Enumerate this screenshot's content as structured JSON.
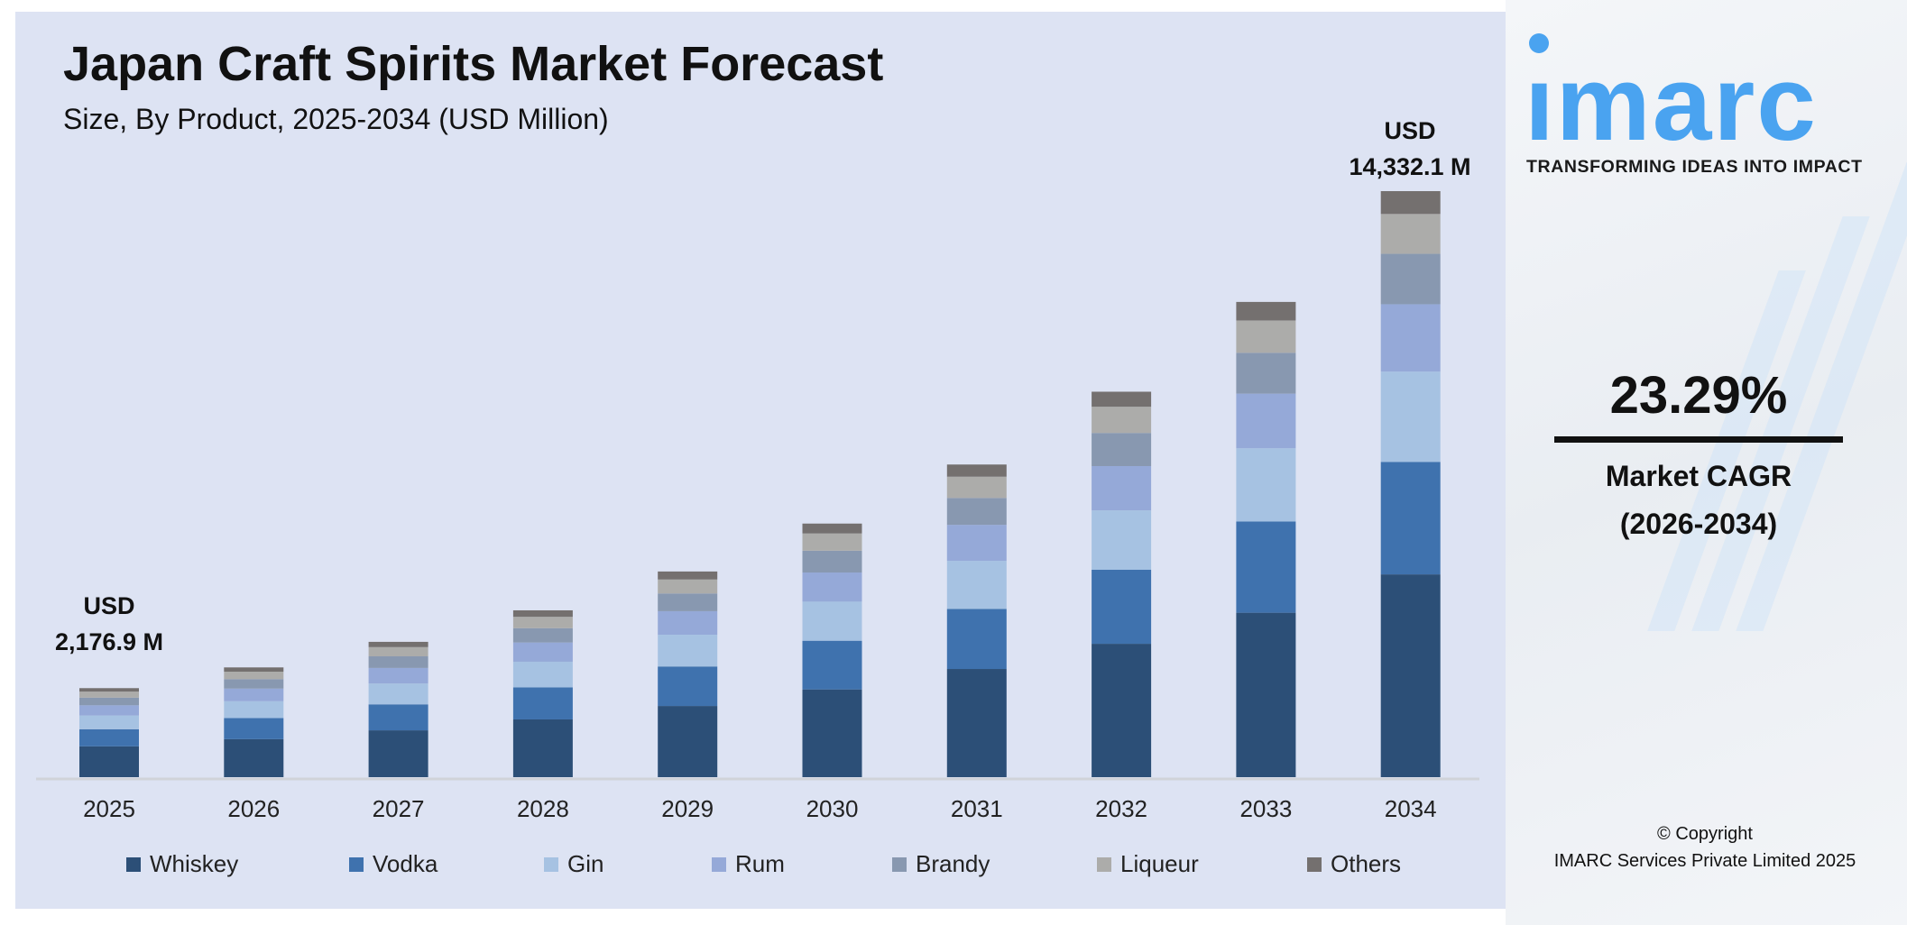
{
  "title": "Japan Craft Spirits Market Forecast",
  "subtitle": "Size, By Product, 2025-2034 (USD Million)",
  "annotations": {
    "start": {
      "line1": "USD",
      "line2": "2,176.9 M"
    },
    "end": {
      "line1": "USD",
      "line2": "14,332.1 M"
    }
  },
  "brand": {
    "logo_text": "imarc",
    "tagline": "TRANSFORMING IDEAS INTO IMPACT",
    "color": "#4aa3f0"
  },
  "cagr": {
    "value": "23.29%",
    "label": "Market CAGR",
    "period": "(2026-2034)"
  },
  "copyright": {
    "line1": "© Copyright",
    "line2": "IMARC Services Private Limited 2025"
  },
  "chart_data": {
    "type": "bar",
    "stacked": true,
    "title": "Japan Craft Spirits Market Forecast",
    "subtitle": "Size, By Product, 2025-2034 (USD Million)",
    "xlabel": "",
    "ylabel": "",
    "ylim": [
      0,
      14332.1
    ],
    "grid": false,
    "legend": "bottom",
    "categories": [
      "2025",
      "2026",
      "2027",
      "2028",
      "2029",
      "2030",
      "2031",
      "2032",
      "2033",
      "2034"
    ],
    "totals": [
      2176.9,
      2683.9,
      3309.0,
      4079.7,
      5029.9,
      6201.4,
      7645.8,
      9426.6,
      11622.2,
      14332.1
    ],
    "series": [
      {
        "name": "Whiskey",
        "color": "#2c4f77",
        "values": [
          753.2,
          928.6,
          1144.9,
          1411.6,
          1740.3,
          2145.7,
          2645.5,
          3261.6,
          4021.3,
          4958.9
        ]
      },
      {
        "name": "Vodka",
        "color": "#3f72ae",
        "values": [
          418.0,
          515.3,
          635.3,
          783.3,
          965.7,
          1190.7,
          1468.0,
          1809.9,
          2231.5,
          2751.8
        ]
      },
      {
        "name": "Gin",
        "color": "#a6c2e2",
        "values": [
          335.2,
          413.3,
          509.6,
          628.3,
          774.6,
          955.0,
          1177.5,
          1451.7,
          1789.8,
          2207.1
        ]
      },
      {
        "name": "Rum",
        "color": "#95a9d8",
        "values": [
          250.3,
          308.6,
          380.5,
          469.2,
          578.4,
          713.2,
          879.3,
          1084.1,
          1336.6,
          1648.2
        ]
      },
      {
        "name": "Brandy",
        "color": "#8898b0",
        "values": [
          187.2,
          230.8,
          284.6,
          350.9,
          432.6,
          533.3,
          657.5,
          810.7,
          999.5,
          1232.6
        ]
      },
      {
        "name": "Liqueur",
        "color": "#acacaa",
        "values": [
          148.0,
          182.5,
          225.0,
          277.4,
          342.0,
          421.7,
          519.9,
          641.0,
          790.3,
          974.6
        ]
      },
      {
        "name": "Others",
        "color": "#74706f",
        "values": [
          84.9,
          104.7,
          129.1,
          159.1,
          196.2,
          241.9,
          298.2,
          367.6,
          453.3,
          558.9
        ]
      }
    ]
  }
}
